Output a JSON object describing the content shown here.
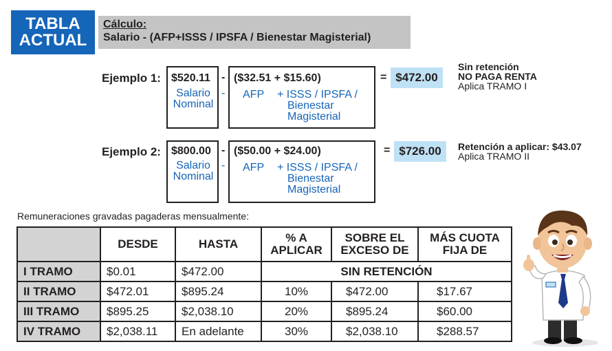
{
  "header": {
    "tag_line1": "TABLA",
    "tag_line2": "ACTUAL",
    "calc_title": "Cálculo:",
    "calc_formula": "Salario - (AFP+ISSS / IPSFA / Bienestar Magisterial)"
  },
  "examples": [
    {
      "label": "Ejemplo 1:",
      "salary": "$520.11",
      "salary_sub1": "Salario",
      "salary_sub2": "Nominal",
      "deductions": "($32.51 + $15.60)",
      "afp": "AFP",
      "isss_line1": "+ ISSS / IPSFA /",
      "isss_line2": "Bienestar",
      "isss_line3": "Magisterial",
      "equals": "=",
      "result": "$472.00",
      "note_line1": "Sin retención",
      "note_line2": "NO PAGA RENTA",
      "note_line3": "Aplica TRAMO I"
    },
    {
      "label": "Ejemplo 2:",
      "salary": "$800.00",
      "salary_sub1": "Salario",
      "salary_sub2": "Nominal",
      "deductions": "($50.00 + $24.00)",
      "afp": "AFP",
      "isss_line1": "+ ISSS / IPSFA /",
      "isss_line2": "Bienestar",
      "isss_line3": "Magisterial",
      "equals": "=",
      "result": "$726.00",
      "note_line1": "Retención a aplicar: $43.07",
      "note_line2": "Aplica TRAMO II"
    }
  ],
  "minus": "-",
  "caption": "Remuneraciones gravadas pagaderas mensualmente:",
  "table": {
    "headers": {
      "desde": "DESDE",
      "hasta": "HASTA",
      "pct_line1": "% A",
      "pct_line2": "APLICAR",
      "exceso_line1": "SOBRE EL",
      "exceso_line2": "EXCESO DE",
      "cuota_line1": "MÁS CUOTA",
      "cuota_line2": "FIJA DE"
    },
    "rows": [
      {
        "tramo": "I TRAMO",
        "desde": "$0.01",
        "hasta": "$472.00",
        "merged": "SIN RETENCIÓN"
      },
      {
        "tramo": "II TRAMO",
        "desde": "$472.01",
        "hasta": "$895.24",
        "pct": "10%",
        "exceso": "$472.00",
        "cuota": "$17.67"
      },
      {
        "tramo": "III TRAMO",
        "desde": "$895.25",
        "hasta": "$2,038.10",
        "pct": "20%",
        "exceso": "$895.24",
        "cuota": "$60.00"
      },
      {
        "tramo": "IV TRAMO",
        "desde": "$2,038.11",
        "hasta": "En adelante",
        "pct": "30%",
        "exceso": "$2,038.10",
        "cuota": "$288.57"
      }
    ]
  },
  "colors": {
    "brand_blue": "#1565b8",
    "highlight": "#bfe1f5",
    "gray": "#c4c4c4"
  }
}
